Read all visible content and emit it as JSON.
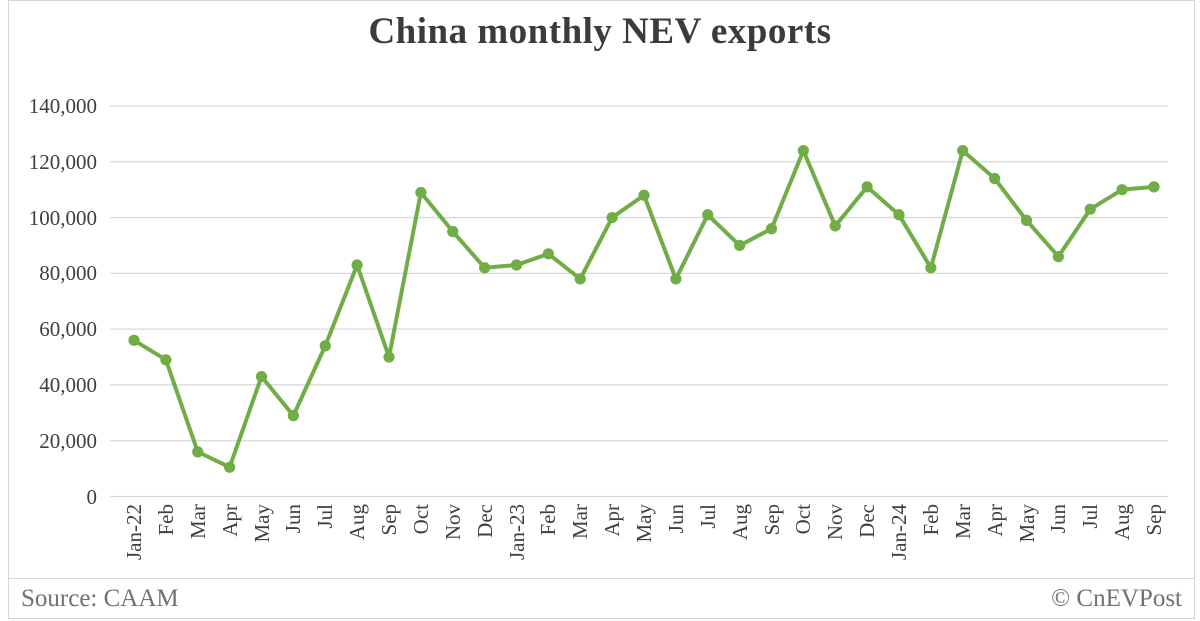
{
  "title": "China monthly NEV exports",
  "footer": {
    "source": "Source: CAAM",
    "copyright": "© CnEVPost"
  },
  "colors": {
    "line": "#70ad47",
    "marker": "#70ad47",
    "grid": "#d9d9d9",
    "title_text": "#3b3b3b",
    "axis_text": "#3f3f3f",
    "footer_text": "#717171"
  },
  "chart_data": {
    "type": "line",
    "title": "China monthly NEV exports",
    "xlabel": "",
    "ylabel": "",
    "ylim": [
      0,
      140000
    ],
    "ytick_step": 20000,
    "ytick_labels": [
      "140,000",
      "120,000",
      "100,000",
      "80,000",
      "60,000",
      "40,000",
      "20,000",
      "0"
    ],
    "grid": "horizontal",
    "legend": "none",
    "marker": "circle",
    "categories": [
      "Jan-22",
      "Feb",
      "Mar",
      "Apr",
      "May",
      "Jun",
      "Jul",
      "Aug",
      "Sep",
      "Oct",
      "Nov",
      "Dec",
      "Jan-23",
      "Feb",
      "Mar",
      "Apr",
      "May",
      "Jun",
      "Jul",
      "Aug",
      "Sep",
      "Oct",
      "Nov",
      "Dec",
      "Jan-24",
      "Feb",
      "Mar",
      "Apr",
      "May",
      "Jun",
      "Jul",
      "Aug",
      "Sep"
    ],
    "series": [
      {
        "name": "NEV exports",
        "values": [
          56000,
          49000,
          16000,
          10500,
          43000,
          29000,
          54000,
          83000,
          50000,
          109000,
          95000,
          82000,
          83000,
          87000,
          78000,
          100000,
          108000,
          78000,
          101000,
          90000,
          96000,
          124000,
          97000,
          111000,
          101000,
          82000,
          124000,
          114000,
          99000,
          86000,
          103000,
          110000,
          111000
        ]
      }
    ]
  }
}
